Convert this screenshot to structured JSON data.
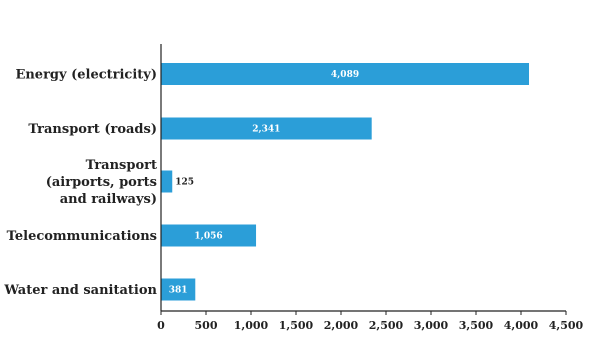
{
  "chart_data": {
    "type": "bar",
    "orientation": "horizontal",
    "title": "",
    "xlabel": "",
    "ylabel": "",
    "categories": [
      "Energy (electricity)",
      "Transport (roads)",
      "Transport (airports, ports and railways)",
      "Telecommunications",
      "Water and sanitation"
    ],
    "category_lines": [
      [
        "Energy (electricity)"
      ],
      [
        "Transport (roads)"
      ],
      [
        "Transport",
        "(airports, ports",
        "and railways)"
      ],
      [
        "Telecommunications"
      ],
      [
        "Water and sanitation"
      ]
    ],
    "values": [
      4089,
      2341,
      125,
      1056,
      381
    ],
    "value_labels": [
      "4,089",
      "2,341",
      "125",
      "1,056",
      "381"
    ],
    "xlim": [
      0,
      4500
    ],
    "xticks": [
      0,
      500,
      1000,
      1500,
      2000,
      2500,
      3000,
      3500,
      4000,
      4500
    ],
    "xtick_labels": [
      "0",
      "500",
      "1,000",
      "1,500",
      "2,000",
      "2,500",
      "3,000",
      "3,500",
      "4,000",
      "4,500"
    ],
    "grid": false,
    "legend": "none",
    "bar_color": "#2b9ed8",
    "axis_color": "#222222"
  }
}
